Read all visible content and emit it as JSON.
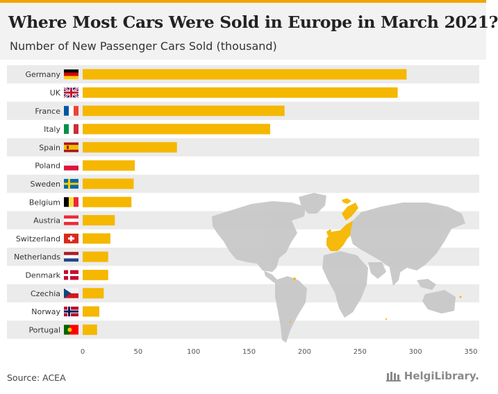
{
  "title": "Where Most Cars Were Sold in Europe in March 2021?",
  "subtitle": "Number of New Passenger Cars Sold (thousand)",
  "source": "Source: ACEA",
  "logo_text": "HelgiLibrary.",
  "colors": {
    "accent": "#f4a300",
    "bar": "#f5b700",
    "band": "#ebebeb",
    "map_land": "#c8c8c8",
    "map_highlight": "#f5b700"
  },
  "chart_data": {
    "type": "bar",
    "orientation": "horizontal",
    "title": "Where Most Cars Were Sold in Europe in March 2021?",
    "subtitle": "Number of New Passenger Cars Sold (thousand)",
    "xlabel": "",
    "ylabel": "",
    "xlim": [
      0,
      350
    ],
    "xticks": [
      0,
      50,
      100,
      150,
      200,
      250,
      300,
      350
    ],
    "categories": [
      "Germany",
      "UK",
      "France",
      "Italy",
      "Spain",
      "Poland",
      "Sweden",
      "Belgium",
      "Austria",
      "Switzerland",
      "Netherlands",
      "Denmark",
      "Czechia",
      "Norway",
      "Portugal"
    ],
    "values": [
      292,
      284,
      182,
      169,
      85,
      47,
      46,
      44,
      29,
      25,
      23,
      23,
      19,
      15,
      13
    ],
    "flags": [
      "germany",
      "uk",
      "france",
      "italy",
      "spain",
      "poland",
      "sweden",
      "belgium",
      "austria",
      "switzerland",
      "netherlands",
      "denmark",
      "czechia",
      "norway",
      "portugal"
    ],
    "grid": false,
    "legend": "none"
  }
}
